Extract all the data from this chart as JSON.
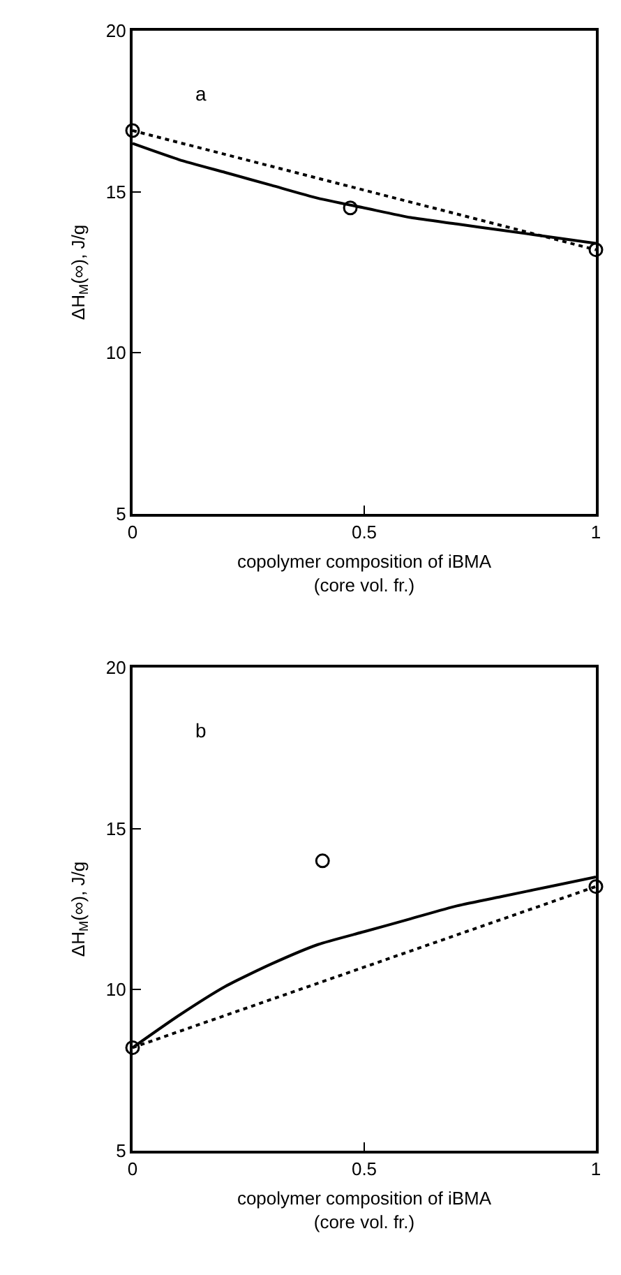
{
  "chart_data": [
    {
      "type": "scatter",
      "xlabel": "copolymer composition of iBMA\n(core vol. fr.)",
      "ylabel": "ΔH$_{M}$(∞), J/g",
      "annotations": [
        "a"
      ],
      "xlim": [
        0,
        1
      ],
      "xticks": [
        0,
        0.5,
        1
      ],
      "ylim": [
        5,
        20
      ],
      "yticks": [
        5,
        10,
        15,
        20
      ],
      "grid": false,
      "series": [
        {
          "marker": "circle",
          "color": "#000000",
          "x": [
            0,
            0.47,
            1
          ],
          "values": [
            16.9,
            14.5,
            13.2
          ]
        },
        {
          "type": "line",
          "marker": "none",
          "line_style": "solid",
          "color": "#000000",
          "x": [
            0,
            0.1,
            0.2,
            0.3,
            0.4,
            0.5,
            0.6,
            0.7,
            0.8,
            0.9,
            1
          ],
          "values": [
            16.5,
            16.0,
            15.6,
            15.2,
            14.8,
            14.5,
            14.2,
            14.0,
            13.8,
            13.6,
            13.4
          ]
        },
        {
          "type": "line",
          "marker": "none",
          "line_style": "dotted",
          "color": "#000000",
          "x": [
            0,
            1
          ],
          "values": [
            16.9,
            13.2
          ]
        }
      ]
    },
    {
      "type": "scatter",
      "xlabel": "copolymer composition of iBMA\n(core vol. fr.)",
      "ylabel": "ΔH$_{M}$(∞), J/g",
      "annotations": [
        "b"
      ],
      "xlim": [
        0,
        1
      ],
      "xticks": [
        0,
        0.5,
        1
      ],
      "ylim": [
        5,
        20
      ],
      "yticks": [
        5,
        10,
        15,
        20
      ],
      "grid": false,
      "series": [
        {
          "marker": "circle",
          "color": "#000000",
          "x": [
            0,
            0.41,
            1
          ],
          "values": [
            8.2,
            14.0,
            13.2
          ]
        },
        {
          "type": "line",
          "marker": "none",
          "line_style": "solid",
          "color": "#000000",
          "x": [
            0,
            0.1,
            0.2,
            0.3,
            0.4,
            0.5,
            0.6,
            0.7,
            0.8,
            0.9,
            1
          ],
          "values": [
            8.2,
            9.2,
            10.1,
            10.8,
            11.4,
            11.8,
            12.2,
            12.6,
            12.9,
            13.2,
            13.5
          ]
        },
        {
          "type": "line",
          "marker": "none",
          "line_style": "dotted",
          "color": "#000000",
          "x": [
            0,
            1
          ],
          "values": [
            8.2,
            13.2
          ]
        }
      ]
    }
  ]
}
